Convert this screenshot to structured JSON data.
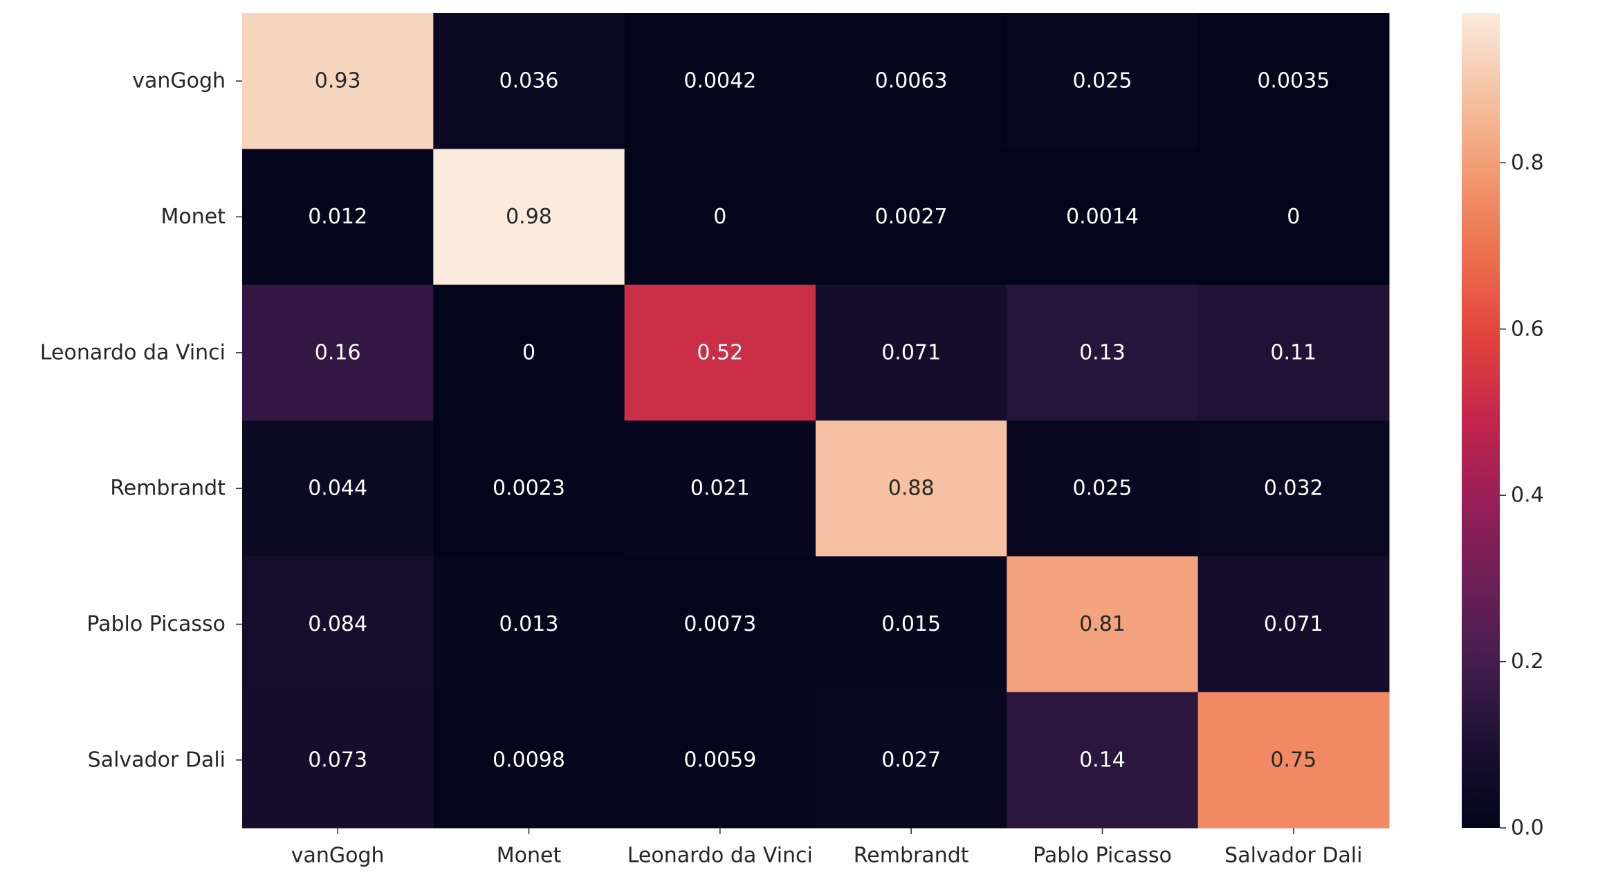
{
  "chart_data": {
    "type": "heatmap",
    "title": "",
    "xlabel": "",
    "ylabel": "",
    "row_labels": [
      "vanGogh",
      "Monet",
      "Leonardo da Vinci",
      "Rembrandt",
      "Pablo Picasso",
      "Salvador Dali"
    ],
    "col_labels": [
      "vanGogh",
      "Monet",
      "Leonardo da Vinci",
      "Rembrandt",
      "Pablo Picasso",
      "Salvador Dali"
    ],
    "values": [
      [
        0.93,
        0.036,
        0.0042,
        0.0063,
        0.025,
        0.0035
      ],
      [
        0.012,
        0.98,
        0,
        0.0027,
        0.0014,
        0
      ],
      [
        0.16,
        0,
        0.52,
        0.071,
        0.13,
        0.11
      ],
      [
        0.044,
        0.0023,
        0.021,
        0.88,
        0.025,
        0.032
      ],
      [
        0.084,
        0.013,
        0.0073,
        0.015,
        0.81,
        0.071
      ],
      [
        0.073,
        0.0098,
        0.0059,
        0.027,
        0.14,
        0.75
      ]
    ],
    "annotations": [
      [
        "0.93",
        "0.036",
        "0.0042",
        "0.0063",
        "0.025",
        "0.0035"
      ],
      [
        "0.012",
        "0.98",
        "0",
        "0.0027",
        "0.0014",
        "0"
      ],
      [
        "0.16",
        "0",
        "0.52",
        "0.071",
        "0.13",
        "0.11"
      ],
      [
        "0.044",
        "0.0023",
        "0.021",
        "0.88",
        "0.025",
        "0.032"
      ],
      [
        "0.084",
        "0.013",
        "0.0073",
        "0.015",
        "0.81",
        "0.071"
      ],
      [
        "0.073",
        "0.0098",
        "0.0059",
        "0.027",
        "0.14",
        "0.75"
      ]
    ],
    "colorbar": {
      "range": [
        0,
        0.98
      ],
      "ticks": [
        0.0,
        0.2,
        0.4,
        0.6,
        0.8
      ],
      "tick_labels": [
        "0.0",
        "0.2",
        "0.4",
        "0.6",
        "0.8"
      ],
      "colormap": "rocket"
    },
    "grid": false,
    "legend": "colorbar-right"
  },
  "colors": {
    "text_light": "#ffffff",
    "text_dark": "#262626",
    "background": "#ffffff"
  }
}
